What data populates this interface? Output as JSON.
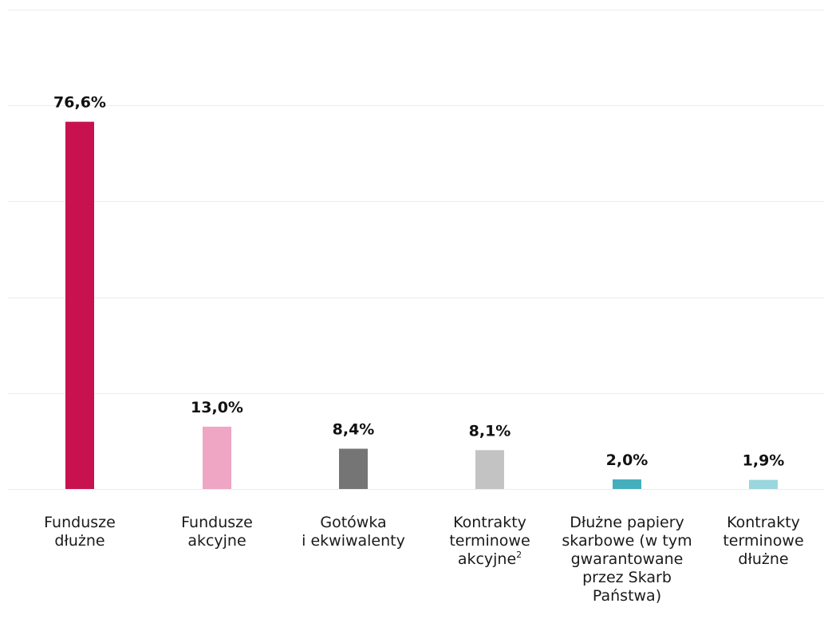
{
  "chart_data": {
    "type": "bar",
    "title": "",
    "xlabel": "",
    "ylabel": "",
    "ylim": [
      0,
      100
    ],
    "grid": true,
    "categories": [
      {
        "lines": [
          "Fundusze",
          "dłużne"
        ],
        "sup": ""
      },
      {
        "lines": [
          "Fundusze",
          "akcyjne"
        ],
        "sup": ""
      },
      {
        "lines": [
          "Gotówka",
          "i ekwiwalenty"
        ],
        "sup": ""
      },
      {
        "lines": [
          "Kontrakty",
          "terminowe",
          "akcyjne"
        ],
        "sup": "2"
      },
      {
        "lines": [
          "Dłużne papiery",
          "skarbowe (w tym",
          "gwarantowane",
          "przez Skarb",
          "Państwa)"
        ],
        "sup": ""
      },
      {
        "lines": [
          "Kontrakty",
          "terminowe",
          "dłużne"
        ],
        "sup": ""
      }
    ],
    "values": [
      76.6,
      13.0,
      8.4,
      8.1,
      2.0,
      1.9
    ],
    "value_labels": [
      "76,6%",
      "13,0%",
      "8,4%",
      "8,1%",
      "2,0%",
      "1,9%"
    ],
    "colors": [
      "#c8114f",
      "#eea6c4",
      "#757575",
      "#c3c3c3",
      "#45aebd",
      "#9ad6dd"
    ],
    "gridline_color": "#ececec"
  }
}
